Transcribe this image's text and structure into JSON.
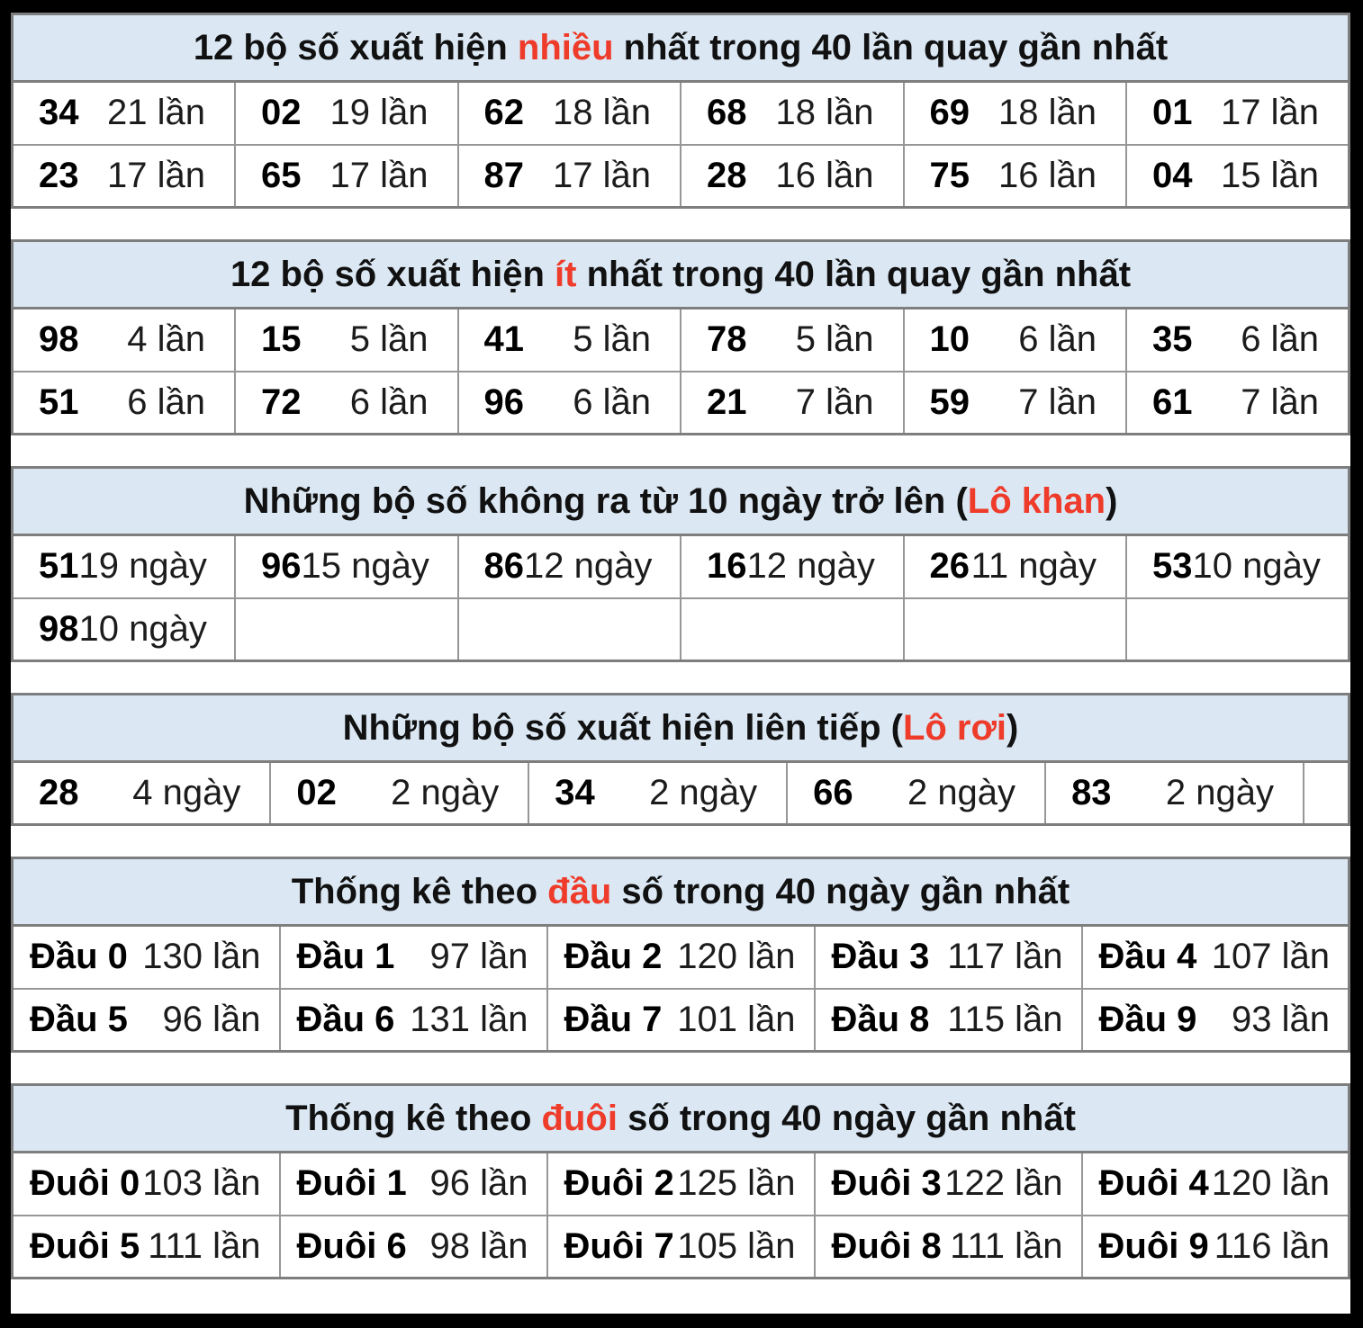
{
  "page": {
    "background": "#000000",
    "gap_background": "#ffffff",
    "header_bg": "#dbe8f4",
    "border_color": "#7e7e7e",
    "accent_red": "#ee3b2a",
    "text_color": "#111111"
  },
  "tables": [
    {
      "id": "most-frequent",
      "title_pre": "12 bộ số xuất hiện ",
      "title_red": "nhiều",
      "title_post": " nhất trong 40 lần quay gần nhất",
      "rows": [
        [
          {
            "num": "34",
            "val": "21 lần"
          },
          {
            "num": "02",
            "val": "19 lần"
          },
          {
            "num": "62",
            "val": "18 lần"
          },
          {
            "num": "68",
            "val": "18 lần"
          },
          {
            "num": "69",
            "val": "18 lần"
          },
          {
            "num": "01",
            "val": "17 lần"
          }
        ],
        [
          {
            "num": "23",
            "val": "17 lần"
          },
          {
            "num": "65",
            "val": "17 lần"
          },
          {
            "num": "87",
            "val": "17 lần"
          },
          {
            "num": "28",
            "val": "16 lần"
          },
          {
            "num": "75",
            "val": "16 lần"
          },
          {
            "num": "04",
            "val": "15 lần"
          }
        ]
      ]
    },
    {
      "id": "least-frequent",
      "title_pre": "12 bộ số xuất hiện ",
      "title_red": "ít",
      "title_post": " nhất trong 40 lần quay gần nhất",
      "rows": [
        [
          {
            "num": "98",
            "val": "4 lần"
          },
          {
            "num": "15",
            "val": "5 lần"
          },
          {
            "num": "41",
            "val": "5 lần"
          },
          {
            "num": "78",
            "val": "5 lần"
          },
          {
            "num": "10",
            "val": "6 lần"
          },
          {
            "num": "35",
            "val": "6 lần"
          }
        ],
        [
          {
            "num": "51",
            "val": "6 lần"
          },
          {
            "num": "72",
            "val": "6 lần"
          },
          {
            "num": "96",
            "val": "6 lần"
          },
          {
            "num": "21",
            "val": "7 lần"
          },
          {
            "num": "59",
            "val": "7 lần"
          },
          {
            "num": "61",
            "val": "7 lần"
          }
        ]
      ]
    },
    {
      "id": "lo-khan",
      "title_pre": "Những bộ số không ra từ 10 ngày trở lên (",
      "title_red": "Lô khan",
      "title_post": ")",
      "rows": [
        [
          {
            "num": "51",
            "val": "19 ngày"
          },
          {
            "num": "96",
            "val": "15 ngày"
          },
          {
            "num": "86",
            "val": "12 ngày"
          },
          {
            "num": "16",
            "val": "12 ngày"
          },
          {
            "num": "26",
            "val": "11 ngày"
          },
          {
            "num": "53",
            "val": "10 ngày"
          }
        ],
        [
          {
            "num": "98",
            "val": "10 ngày"
          },
          {
            "num": "",
            "val": ""
          },
          {
            "num": "",
            "val": ""
          },
          {
            "num": "",
            "val": ""
          },
          {
            "num": "",
            "val": ""
          },
          {
            "num": "",
            "val": ""
          }
        ]
      ]
    },
    {
      "id": "lo-roi",
      "title_pre": "Những bộ số xuất hiện liên tiếp (",
      "title_red": "Lô rơi",
      "title_post": ")",
      "rows": [
        [
          {
            "num": "28",
            "val": "4 ngày"
          },
          {
            "num": "02",
            "val": "2 ngày"
          },
          {
            "num": "34",
            "val": "2 ngày"
          },
          {
            "num": "66",
            "val": "2 ngày"
          },
          {
            "num": "83",
            "val": "2 ngày"
          },
          {
            "num": "",
            "val": ""
          }
        ]
      ]
    },
    {
      "id": "dau-so",
      "title_pre": "Thống kê theo ",
      "title_red": "đầu",
      "title_post": " số trong 40 ngày gần nhất",
      "rows": [
        [
          {
            "num": "Đầu 0",
            "val": "130 lần"
          },
          {
            "num": "Đầu 1",
            "val": "97 lần"
          },
          {
            "num": "Đầu 2",
            "val": "120 lần"
          },
          {
            "num": "Đầu 3",
            "val": "117 lần"
          },
          {
            "num": "Đầu 4",
            "val": "107 lần"
          }
        ],
        [
          {
            "num": "Đầu 5",
            "val": "96 lần"
          },
          {
            "num": "Đầu 6",
            "val": "131 lần"
          },
          {
            "num": "Đầu 7",
            "val": "101 lần"
          },
          {
            "num": "Đầu 8",
            "val": "115 lần"
          },
          {
            "num": "Đầu 9",
            "val": "93 lần"
          }
        ]
      ]
    },
    {
      "id": "duoi-so",
      "title_pre": "Thống kê theo ",
      "title_red": "đuôi",
      "title_post": " số trong 40 ngày gần nhất",
      "rows": [
        [
          {
            "num": "Đuôi 0",
            "val": "103 lần"
          },
          {
            "num": "Đuôi 1",
            "val": "96 lần"
          },
          {
            "num": "Đuôi 2",
            "val": "125 lần"
          },
          {
            "num": "Đuôi 3",
            "val": "122 lần"
          },
          {
            "num": "Đuôi 4",
            "val": "120 lần"
          }
        ],
        [
          {
            "num": "Đuôi 5",
            "val": "111 lần"
          },
          {
            "num": "Đuôi 6",
            "val": "98 lần"
          },
          {
            "num": "Đuôi 7",
            "val": "105 lần"
          },
          {
            "num": "Đuôi 8",
            "val": "111 lần"
          },
          {
            "num": "Đuôi 9",
            "val": "116 lần"
          }
        ]
      ]
    }
  ]
}
